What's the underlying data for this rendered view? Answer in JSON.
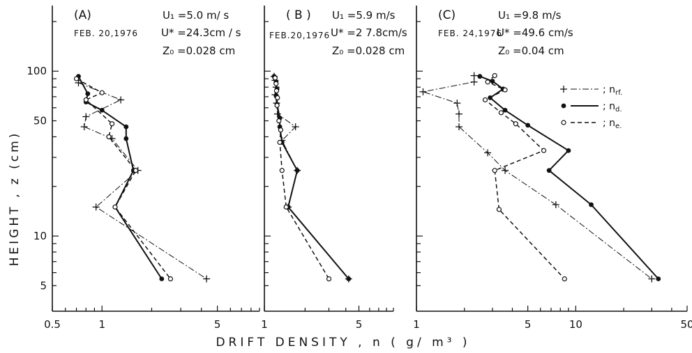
{
  "chart_data": {
    "type": "line",
    "y_axis_label": "HEIGHT , z   (cm)",
    "x_axis_label": "DRIFT   DENSITY , n   ( g/ m³ )",
    "y_scale": "log",
    "x_scale": "log",
    "ylim": [
      3.5,
      250
    ],
    "y_ticks": [
      5,
      10,
      50,
      100
    ],
    "legend": {
      "placement": "top-right of panel C",
      "entries": [
        {
          "symbol": "+",
          "style": "dash-dot",
          "label": "; n",
          "sub": "rf."
        },
        {
          "symbol": "●",
          "style": "solid",
          "label": "; n",
          "sub": "d."
        },
        {
          "symbol": "○",
          "style": "dashed",
          "label": "; n",
          "sub": "e."
        }
      ]
    },
    "panels": [
      {
        "label": "(A)",
        "date": "FEB. 20,1976",
        "u1": "U₁ =5.0  m/ s",
        "ustar": "U* =24.3cm / s",
        "z0": "Z₀ =0.028 cm",
        "xlim": [
          0.5,
          9
        ],
        "x_ticks": [
          {
            "v": 0.5,
            "t": "0.5"
          },
          {
            "v": 1,
            "t": "1"
          },
          {
            "v": 5,
            "t": "5"
          }
        ],
        "series": [
          {
            "key": "rf",
            "points": [
              [
                0.72,
                85
              ],
              [
                1.3,
                67
              ],
              [
                0.8,
                53
              ],
              [
                0.78,
                46
              ],
              [
                1.15,
                39
              ],
              [
                1.65,
                25
              ],
              [
                0.92,
                15
              ],
              [
                4.3,
                5.5
              ]
            ]
          },
          {
            "key": "d",
            "points": [
              [
                0.72,
                93
              ],
              [
                0.82,
                73
              ],
              [
                0.8,
                65
              ],
              [
                1.0,
                58
              ],
              [
                1.4,
                46
              ],
              [
                1.4,
                39
              ],
              [
                1.55,
                25
              ],
              [
                1.2,
                15
              ],
              [
                2.3,
                5.5
              ]
            ]
          },
          {
            "key": "e",
            "points": [
              [
                0.7,
                90
              ],
              [
                1.0,
                74
              ],
              [
                0.8,
                67
              ],
              [
                1.15,
                48
              ],
              [
                1.1,
                40
              ],
              [
                1.6,
                25
              ],
              [
                1.2,
                15
              ],
              [
                2.6,
                5.5
              ]
            ]
          }
        ]
      },
      {
        "label": "( B )",
        "date": "FEB.20,1976",
        "u1": "U₁ =5.9 m/s",
        "ustar": "U* =2 7.8cm/s",
        "z0": "Z₀ =0.028 cm",
        "xlim": [
          1,
          9
        ],
        "x_ticks": [
          {
            "v": 1,
            "t": "1"
          },
          {
            "v": 5,
            "t": "5"
          }
        ],
        "series": [
          {
            "key": "rf",
            "points": [
              [
                1.18,
                93
              ],
              [
                1.2,
                88
              ],
              [
                1.22,
                80
              ],
              [
                1.2,
                72
              ],
              [
                1.23,
                64
              ],
              [
                1.25,
                55
              ],
              [
                1.7,
                46
              ],
              [
                1.35,
                38
              ],
              [
                1.75,
                25
              ],
              [
                1.5,
                15
              ],
              [
                4.2,
                5.5
              ]
            ]
          },
          {
            "key": "d",
            "points": [
              [
                1.18,
                93
              ],
              [
                1.22,
                86
              ],
              [
                1.24,
                78
              ],
              [
                1.22,
                71
              ],
              [
                1.24,
                63
              ],
              [
                1.3,
                52
              ],
              [
                1.3,
                46
              ],
              [
                1.35,
                37
              ],
              [
                1.75,
                25
              ],
              [
                1.5,
                15
              ],
              [
                4.2,
                5.5
              ]
            ]
          },
          {
            "key": "e",
            "points": [
              [
                1.2,
                91
              ],
              [
                1.22,
                84
              ],
              [
                1.23,
                76
              ],
              [
                1.25,
                69
              ],
              [
                1.24,
                62
              ],
              [
                1.28,
                50
              ],
              [
                1.32,
                44
              ],
              [
                1.3,
                37
              ],
              [
                1.35,
                25
              ],
              [
                1.45,
                15
              ],
              [
                3.0,
                5.5
              ]
            ]
          }
        ]
      },
      {
        "label": "(C)",
        "date": "FEB. 24,1976",
        "u1": "U₁ =9.8 m/s",
        "ustar": "U* =49.6 cm/s",
        "z0": "Z₀ =0.04 cm",
        "xlim": [
          1,
          50
        ],
        "x_ticks": [
          {
            "v": 1,
            "t": "1"
          },
          {
            "v": 5,
            "t": "5"
          },
          {
            "v": 10,
            "t": "10"
          },
          {
            "v": 50,
            "t": "50"
          }
        ],
        "series": [
          {
            "key": "rf",
            "points": [
              [
                2.3,
                94
              ],
              [
                2.3,
                86
              ],
              [
                1.1,
                75
              ],
              [
                1.8,
                64
              ],
              [
                1.85,
                55
              ],
              [
                1.85,
                46
              ],
              [
                2.8,
                32
              ],
              [
                3.6,
                25
              ],
              [
                7.5,
                15.5
              ],
              [
                30,
                5.5
              ]
            ]
          },
          {
            "key": "d",
            "points": [
              [
                2.5,
                93
              ],
              [
                3.0,
                87
              ],
              [
                3.5,
                78
              ],
              [
                2.9,
                69
              ],
              [
                3.6,
                58
              ],
              [
                5.0,
                47
              ],
              [
                9.0,
                33
              ],
              [
                6.8,
                25
              ],
              [
                12.5,
                15.5
              ],
              [
                33,
                5.5
              ]
            ]
          },
          {
            "key": "e",
            "points": [
              [
                3.1,
                94
              ],
              [
                2.8,
                86
              ],
              [
                3.6,
                77
              ],
              [
                2.7,
                67
              ],
              [
                3.4,
                56
              ],
              [
                4.2,
                48
              ],
              [
                6.3,
                33
              ],
              [
                3.1,
                25
              ],
              [
                3.3,
                14.5
              ],
              [
                8.5,
                5.5
              ]
            ]
          }
        ]
      }
    ]
  }
}
